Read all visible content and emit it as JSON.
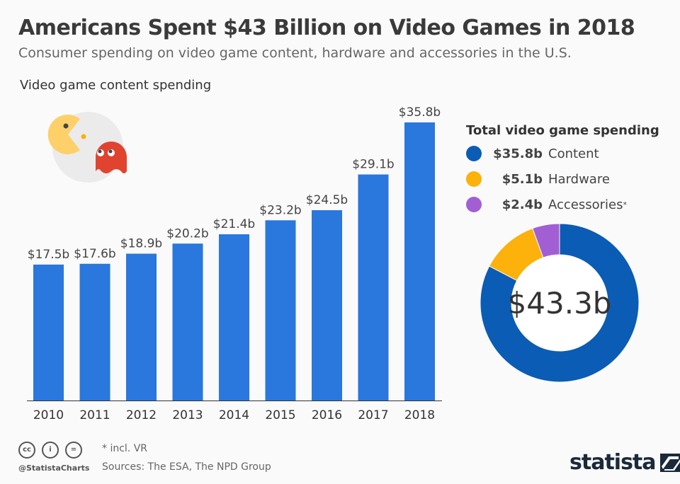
{
  "title": "Americans Spent $43 Billion on Video Games in 2018",
  "subtitle": "Consumer spending on video game content, hardware and accessories in the U.S.",
  "chart_data": [
    {
      "type": "bar",
      "title": "Video game content spending",
      "categories": [
        "2010",
        "2011",
        "2012",
        "2013",
        "2014",
        "2015",
        "2016",
        "2017",
        "2018"
      ],
      "values": [
        17.5,
        17.6,
        18.9,
        20.2,
        21.4,
        23.2,
        24.5,
        29.1,
        35.8
      ],
      "labels": [
        "$17.5b",
        "$17.6b",
        "$18.9b",
        "$20.2b",
        "$21.4b",
        "$23.2b",
        "$24.5b",
        "$29.1b",
        "$35.8b"
      ],
      "color": "#2a77dd",
      "grid": false
    },
    {
      "type": "pie",
      "title": "Total video game spending",
      "center_label": "$43.3b",
      "slices": [
        {
          "name": "Content",
          "value": 35.8,
          "label": "$35.8b",
          "color": "#0b5cb5"
        },
        {
          "name": "Hardware",
          "value": 5.1,
          "label": "$5.1b",
          "color": "#fcb10b"
        },
        {
          "name": "Accessories",
          "value": 2.4,
          "label": "$2.4b",
          "color": "#a25fd4",
          "suffix": "*"
        }
      ]
    }
  ],
  "footer": {
    "note": "* incl. VR",
    "sources": "Sources: The ESA, The NPD Group",
    "handle": "@StatistaCharts",
    "logo": "statista",
    "cc_icons": [
      "cc-icon",
      "by-icon",
      "nd-icon"
    ]
  }
}
